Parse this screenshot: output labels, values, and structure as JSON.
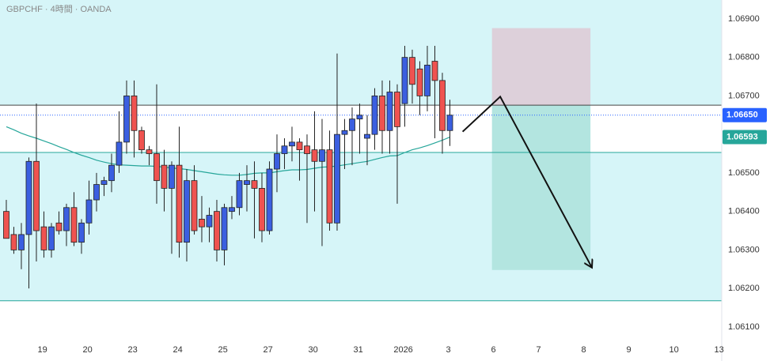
{
  "chart_data": {
    "type": "candlestick",
    "title": "GBPCHF · 4時間 · OANDA",
    "up_color": "#3b5fe0",
    "down_color": "#ef5350",
    "ma_color": "#26a69a",
    "zone_color": "#d6f5f8",
    "open": [
      1.064,
      1.0634,
      1.063,
      1.0634,
      1.0653,
      1.0636,
      1.063,
      1.0637,
      1.0635,
      1.0641,
      1.0632,
      1.0637,
      1.0643,
      1.0647,
      1.0648,
      1.0652,
      1.0658,
      1.067,
      1.0661,
      1.0656,
      1.0655,
      1.0652,
      1.0646,
      1.0652,
      1.0632,
      1.0648,
      1.0638,
      1.0636,
      1.064,
      1.063,
      1.064,
      1.0641,
      1.0647,
      1.0648,
      1.0646,
      1.0635,
      1.0651,
      1.0655,
      1.0657,
      1.0658,
      1.0657,
      1.0656,
      1.0653,
      1.0656,
      1.0637,
      1.066,
      1.0661,
      1.0664,
      1.0659,
      1.066,
      1.067,
      1.0661,
      1.0671,
      1.0668,
      1.068,
      1.0677,
      1.067,
      1.0679,
      1.0674,
      1.0661
    ],
    "high": [
      1.0643,
      1.0636,
      1.0637,
      1.0654,
      1.0668,
      1.064,
      1.0637,
      1.064,
      1.0642,
      1.0645,
      1.0638,
      1.0648,
      1.065,
      1.0649,
      1.0655,
      1.0666,
      1.0674,
      1.0674,
      1.0662,
      1.0657,
      1.0673,
      1.0656,
      1.0653,
      1.0662,
      1.0651,
      1.0652,
      1.0644,
      1.0641,
      1.0643,
      1.0642,
      1.0644,
      1.065,
      1.0652,
      1.0653,
      1.065,
      1.0653,
      1.066,
      1.0659,
      1.0662,
      1.0659,
      1.066,
      1.0666,
      1.0664,
      1.0661,
      1.0681,
      1.0664,
      1.0667,
      1.0668,
      1.0665,
      1.0672,
      1.0674,
      1.0674,
      1.0673,
      1.0683,
      1.0682,
      1.0679,
      1.0683,
      1.0683,
      1.0676,
      1.0669
    ],
    "low": [
      1.0633,
      1.0629,
      1.0625,
      1.062,
      1.0627,
      1.0628,
      1.0628,
      1.0634,
      1.0631,
      1.0631,
      1.0629,
      1.0634,
      1.064,
      1.0644,
      1.0645,
      1.065,
      1.0655,
      1.0654,
      1.0655,
      1.0652,
      1.0642,
      1.064,
      1.0629,
      1.0628,
      1.0627,
      1.0634,
      1.0632,
      1.0632,
      1.0627,
      1.0626,
      1.0638,
      1.0639,
      1.064,
      1.0633,
      1.0632,
      1.0634,
      1.0645,
      1.0651,
      1.0653,
      1.0648,
      1.0637,
      1.064,
      1.0631,
      1.0635,
      1.0635,
      1.0651,
      1.0652,
      1.0655,
      1.0652,
      1.0656,
      1.0655,
      1.0655,
      1.0642,
      1.0662,
      1.0668,
      1.0665,
      1.0666,
      1.0659,
      1.0655,
      1.0657
    ],
    "close": [
      1.0633,
      1.063,
      1.0634,
      1.0653,
      1.0635,
      1.063,
      1.0636,
      1.0635,
      1.0641,
      1.0632,
      1.0637,
      1.0643,
      1.0647,
      1.0648,
      1.0652,
      1.0658,
      1.067,
      1.0661,
      1.0656,
      1.0655,
      1.0648,
      1.0646,
      1.0652,
      1.0632,
      1.0648,
      1.0635,
      1.0636,
      1.0639,
      1.063,
      1.0641,
      1.0641,
      1.0648,
      1.0648,
      1.0646,
      1.0635,
      1.0651,
      1.0655,
      1.0657,
      1.0658,
      1.0656,
      1.0655,
      1.0653,
      1.0656,
      1.0637,
      1.066,
      1.0661,
      1.0664,
      1.0665,
      1.066,
      1.067,
      1.0661,
      1.0671,
      1.0662,
      1.068,
      1.0673,
      1.067,
      1.0678,
      1.0674,
      1.0661,
      1.0665
    ],
    "ma": [
      1.0662,
      1.06612,
      1.06603,
      1.06596,
      1.0659,
      1.06583,
      1.06576,
      1.06568,
      1.06561,
      1.06553,
      1.06546,
      1.0654,
      1.06533,
      1.06528,
      1.06524,
      1.06521,
      1.0652,
      1.06519,
      1.06518,
      1.06518,
      1.06517,
      1.06515,
      1.06513,
      1.06511,
      1.06509,
      1.06506,
      1.06503,
      1.065,
      1.06497,
      1.06495,
      1.06494,
      1.06494,
      1.06496,
      1.06499,
      1.065,
      1.065,
      1.06503,
      1.06506,
      1.06508,
      1.06508,
      1.06509,
      1.06512,
      1.06515,
      1.06516,
      1.06518,
      1.06521,
      1.06524,
      1.06527,
      1.0653,
      1.06535,
      1.0654,
      1.06544,
      1.06545,
      1.06553,
      1.0656,
      1.06565,
      1.06571,
      1.06578,
      1.06585,
      1.06593
    ],
    "levels": [
      1.06676,
      1.06553,
      1.06168
    ],
    "position": {
      "x": [
        64.6,
        77.7
      ],
      "stop": 1.06876,
      "entry": 1.06676,
      "target": 1.06248
    },
    "arrow": {
      "x": [
        60.7,
        65.7,
        77.9
      ],
      "y": [
        1.06607,
        1.06698,
        1.06254
      ]
    },
    "last_price": {
      "value": 1.0665,
      "label": "1.06650"
    },
    "ma_price": {
      "value": 1.06593,
      "label": "1.06593"
    },
    "xlim": [
      -0.84,
      95.16
    ],
    "ylim": [
      1.06067,
      1.06949
    ],
    "xticks": [
      {
        "value": 4.8,
        "label": "19"
      },
      {
        "value": 10.8,
        "label": "20"
      },
      {
        "value": 16.8,
        "label": "23"
      },
      {
        "value": 22.8,
        "label": "24"
      },
      {
        "value": 28.8,
        "label": "25"
      },
      {
        "value": 34.8,
        "label": "27"
      },
      {
        "value": 40.8,
        "label": "30"
      },
      {
        "value": 46.8,
        "label": "31"
      },
      {
        "value": 52.8,
        "label": "2026"
      },
      {
        "value": 58.8,
        "label": "3"
      },
      {
        "value": 64.8,
        "label": "6"
      },
      {
        "value": 70.8,
        "label": "7"
      },
      {
        "value": 76.8,
        "label": "8"
      },
      {
        "value": 82.8,
        "label": "9"
      },
      {
        "value": 88.8,
        "label": "10"
      },
      {
        "value": 94.8,
        "label": "13"
      }
    ],
    "yticks": [
      {
        "value": 1.061,
        "label": "1.06100"
      },
      {
        "value": 1.062,
        "label": "1.06200"
      },
      {
        "value": 1.063,
        "label": "1.06300"
      },
      {
        "value": 1.064,
        "label": "1.06400"
      },
      {
        "value": 1.065,
        "label": "1.06500"
      },
      {
        "value": 1.066,
        "label": "1.06600"
      },
      {
        "value": 1.067,
        "label": "1.06700"
      },
      {
        "value": 1.068,
        "label": "1.06800"
      },
      {
        "value": 1.069,
        "label": "1.06900"
      }
    ]
  }
}
